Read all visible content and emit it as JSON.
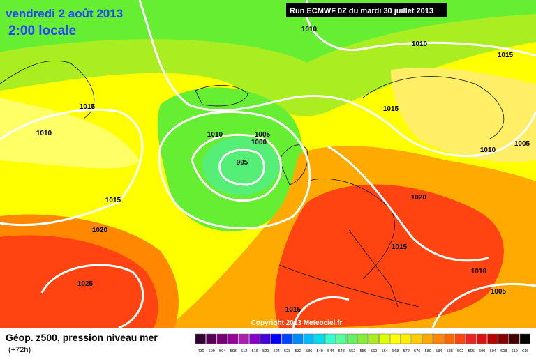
{
  "header": {
    "date": "vendredi 2 août 2013",
    "time": "2:00 locale",
    "run": "Run ECMWF 0Z du mardi 30 juillet 2013"
  },
  "isobar_labels": [
    1010,
    1010,
    1015,
    1015,
    1015,
    1010,
    1010,
    1005,
    1000,
    995,
    1010,
    1005,
    1015,
    1020,
    1020,
    1015,
    1025,
    1010,
    1005,
    1015
  ],
  "copyright": "Copyright 2013 Meteociel.fr",
  "footer": {
    "title": "Géop. z500, pression niveau mer",
    "lead": "(+72h)"
  },
  "legend": {
    "labels": [
      496,
      500,
      504,
      508,
      512,
      516,
      520,
      524,
      528,
      532,
      536,
      540,
      544,
      548,
      552,
      556,
      560,
      564,
      568,
      572,
      576,
      580,
      584,
      588,
      592,
      596,
      600,
      604,
      608,
      612,
      616
    ],
    "colors": [
      "#330033",
      "#550055",
      "#770077",
      "#990099",
      "#aa22aa",
      "#8800cc",
      "#4400dd",
      "#0000ff",
      "#0044ff",
      "#0088ff",
      "#00bbff",
      "#00ddee",
      "#33ffcc",
      "#55ff99",
      "#66ee66",
      "#88ee33",
      "#aaee22",
      "#ddff00",
      "#ffff00",
      "#ffee00",
      "#ffcc00",
      "#ffaa00",
      "#ff8800",
      "#ff6600",
      "#ff4411",
      "#ee2222",
      "#dd1111",
      "#bb0000",
      "#880000",
      "#440000",
      "#000000"
    ]
  }
}
